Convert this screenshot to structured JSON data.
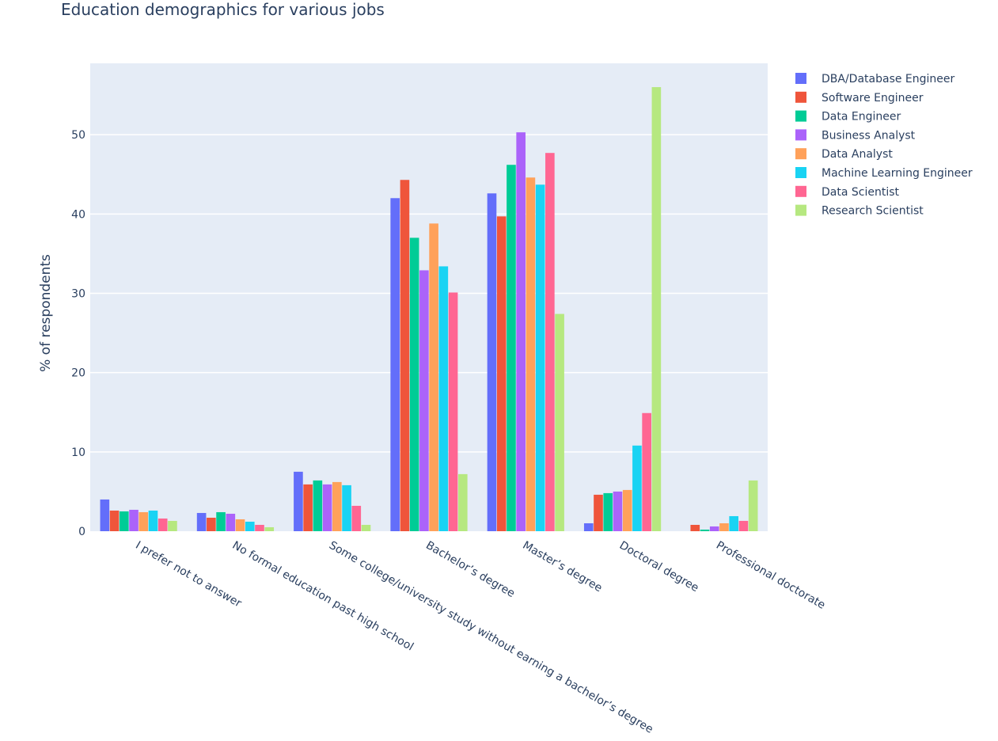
{
  "chart_data": {
    "type": "bar",
    "title": "Education demographics for various jobs",
    "xlabel": "",
    "ylabel": "% of respondents",
    "ylim": [
      0,
      59
    ],
    "yticks": [
      0,
      10,
      20,
      30,
      40,
      50
    ],
    "grid": true,
    "legend_position": "right",
    "plot_background": "#e5ecf6",
    "categories": [
      "I prefer not to answer",
      "No formal education past high school",
      "Some college/university study without earning a bachelor’s degree",
      "Bachelor’s degree",
      "Master’s degree",
      "Doctoral degree",
      "Professional doctorate"
    ],
    "series": [
      {
        "name": "DBA/Database Engineer",
        "color": "#636efa",
        "values": [
          4.0,
          2.3,
          7.5,
          42.0,
          42.6,
          1.0,
          0
        ]
      },
      {
        "name": "Software Engineer",
        "color": "#ef553b",
        "values": [
          2.6,
          1.7,
          5.9,
          44.3,
          39.7,
          4.6,
          0.8
        ]
      },
      {
        "name": "Data Engineer",
        "color": "#00cc96",
        "values": [
          2.5,
          2.4,
          6.4,
          37.0,
          46.2,
          4.8,
          0.2
        ]
      },
      {
        "name": "Business Analyst",
        "color": "#ab63fa",
        "values": [
          2.7,
          2.2,
          5.9,
          32.9,
          50.3,
          5.0,
          0.6
        ]
      },
      {
        "name": "Data Analyst",
        "color": "#ffa15a",
        "values": [
          2.4,
          1.5,
          6.2,
          38.8,
          44.6,
          5.2,
          1.0
        ]
      },
      {
        "name": "Machine Learning Engineer",
        "color": "#19d3f3",
        "values": [
          2.6,
          1.2,
          5.8,
          33.4,
          43.7,
          10.8,
          1.9
        ]
      },
      {
        "name": "Data Scientist",
        "color": "#ff6692",
        "values": [
          1.6,
          0.8,
          3.2,
          30.1,
          47.7,
          14.9,
          1.3
        ]
      },
      {
        "name": "Research Scientist",
        "color": "#b6e880",
        "values": [
          1.3,
          0.5,
          0.8,
          7.2,
          27.4,
          56.0,
          6.4
        ]
      }
    ]
  }
}
